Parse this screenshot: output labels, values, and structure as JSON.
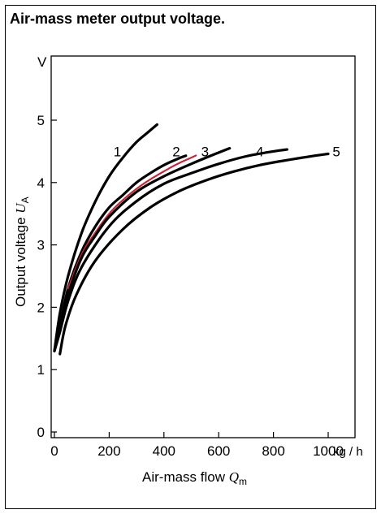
{
  "chart_data": {
    "type": "line",
    "title": "Air-mass meter output voltage.",
    "xlabel_text": "Air-mass flow ",
    "xlabel_symbol": "Q",
    "xlabel_sub": "m",
    "ylabel_text": "Output voltage ",
    "ylabel_symbol": "U",
    "ylabel_sub": "A",
    "x_unit": "kg / h",
    "y_unit": "V",
    "xlim": [
      0,
      1100
    ],
    "ylim": [
      0,
      6
    ],
    "x_ticks": [
      0,
      200,
      400,
      600,
      800,
      1000
    ],
    "y_ticks": [
      0,
      1,
      2,
      3,
      4,
      5
    ],
    "grid": false,
    "series": [
      {
        "name": "1",
        "color": "#000000",
        "style": "solid",
        "x": [
          0,
          20,
          50,
          100,
          150,
          200,
          250,
          300,
          340,
          375
        ],
        "y": [
          1.3,
          1.9,
          2.5,
          3.2,
          3.7,
          4.1,
          4.4,
          4.65,
          4.8,
          4.93
        ]
      },
      {
        "name": "2",
        "color": "#000000",
        "style": "solid",
        "x": [
          0,
          20,
          50,
          100,
          150,
          200,
          250,
          300,
          350,
          400,
          450,
          480
        ],
        "y": [
          1.3,
          1.7,
          2.3,
          2.9,
          3.3,
          3.6,
          3.8,
          4.0,
          4.15,
          4.28,
          4.38,
          4.43
        ]
      },
      {
        "name": "",
        "color": "#cc2233",
        "style": "dotted",
        "x": [
          50,
          100,
          150,
          200,
          250,
          300,
          350,
          400,
          450,
          500,
          520
        ],
        "y": [
          2.3,
          2.85,
          3.2,
          3.5,
          3.72,
          3.9,
          4.05,
          4.18,
          4.3,
          4.4,
          4.44
        ]
      },
      {
        "name": "3",
        "color": "#000000",
        "style": "solid",
        "x": [
          0,
          20,
          50,
          100,
          150,
          200,
          300,
          400,
          500,
          600,
          640
        ],
        "y": [
          1.3,
          1.65,
          2.2,
          2.8,
          3.15,
          3.45,
          3.85,
          4.1,
          4.3,
          4.48,
          4.55
        ]
      },
      {
        "name": "4",
        "color": "#000000",
        "style": "solid",
        "x": [
          0,
          20,
          50,
          100,
          200,
          300,
          400,
          500,
          600,
          700,
          800,
          850
        ],
        "y": [
          1.3,
          1.6,
          2.1,
          2.65,
          3.3,
          3.7,
          3.98,
          4.15,
          4.3,
          4.42,
          4.5,
          4.53
        ]
      },
      {
        "name": "5",
        "color": "#000000",
        "style": "solid",
        "x": [
          20,
          40,
          80,
          150,
          250,
          350,
          450,
          550,
          650,
          750,
          850,
          950,
          1000
        ],
        "y": [
          1.25,
          1.7,
          2.2,
          2.75,
          3.25,
          3.6,
          3.85,
          4.03,
          4.17,
          4.28,
          4.36,
          4.43,
          4.46
        ]
      }
    ],
    "series_label_positions": [
      {
        "name": "1",
        "x": 230,
        "y": 4.5
      },
      {
        "name": "2",
        "x": 445,
        "y": 4.5
      },
      {
        "name": "3",
        "x": 550,
        "y": 4.5
      },
      {
        "name": "4",
        "x": 750,
        "y": 4.5
      },
      {
        "name": "5",
        "x": 1030,
        "y": 4.5
      }
    ]
  }
}
